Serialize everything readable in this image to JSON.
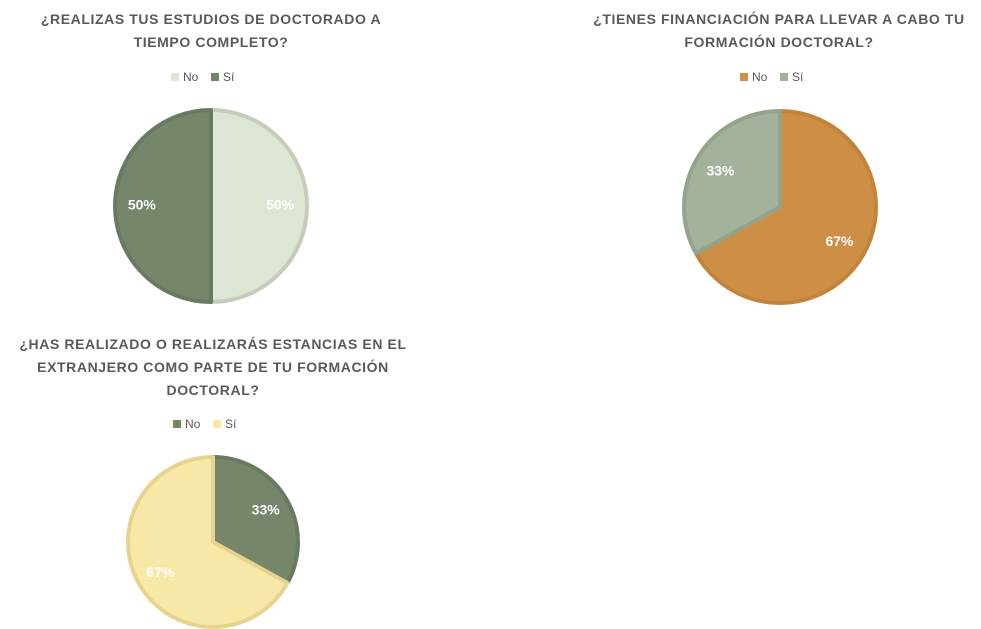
{
  "chart_data": [
    {
      "type": "pie",
      "title": "¿REALIZAS TUS ESTUDIOS DE DOCTORADO A TIEMPO COMPLETO?",
      "categories": [
        "No",
        "Sí"
      ],
      "values": [
        50,
        50
      ],
      "value_labels": [
        "50%",
        "50%"
      ],
      "colors": [
        "#dde6d3",
        "#75866b"
      ],
      "edge_colors": [
        "#c5ccbb",
        "#6a7a61"
      ],
      "label_colors": [
        "#ffffff",
        "#ffffff"
      ]
    },
    {
      "type": "pie",
      "title": "¿TIENES FINANCIACIÓN PARA LLEVAR A CABO TU FORMACIÓN DOCTORAL?",
      "categories": [
        "No",
        "Sí"
      ],
      "values": [
        67,
        33
      ],
      "value_labels": [
        "67%",
        "33%"
      ],
      "colors": [
        "#cd8f45",
        "#a3b39b"
      ],
      "edge_colors": [
        "#c2843b",
        "#94a48c"
      ],
      "label_colors": [
        "#ffffff",
        "#ffffff"
      ]
    },
    {
      "type": "pie",
      "title": "¿HAS REALIZADO O REALIZARÁS ESTANCIAS EN EL EXTRANJERO COMO PARTE DE TU FORMACIÓN DOCTORAL?",
      "categories": [
        "No",
        "Sí"
      ],
      "values": [
        33,
        67
      ],
      "value_labels": [
        "33%",
        "67%"
      ],
      "colors": [
        "#75866b",
        "#f8e8a8"
      ],
      "edge_colors": [
        "#6a7a61",
        "#e6d38e"
      ],
      "label_colors": [
        "#ffffff",
        "#ffffff"
      ]
    }
  ]
}
